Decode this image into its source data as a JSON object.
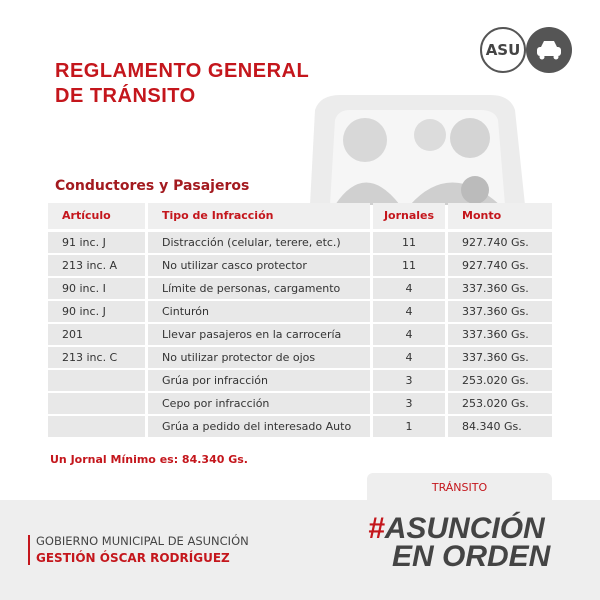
{
  "header": {
    "title_line1": "REGLAMENTO GENERAL",
    "title_line2": "DE TRÁNSITO",
    "badge": "ASU"
  },
  "section": {
    "title": "Conductores y Pasajeros"
  },
  "table": {
    "columns": [
      "Artículo",
      "Tipo de Infracción",
      "Jornales",
      "Monto"
    ],
    "rows": [
      [
        "91 inc. J",
        "Distracción (celular, terere, etc.)",
        "11",
        "927.740 Gs."
      ],
      [
        "213 inc. A",
        "No utilizar casco protector",
        "11",
        "927.740 Gs."
      ],
      [
        "90 inc. I",
        "Límite de personas, cargamento",
        "4",
        "337.360 Gs."
      ],
      [
        "90 inc. J",
        "Cinturón",
        "4",
        "337.360 Gs."
      ],
      [
        "201",
        "Llevar pasajeros en la carrocería",
        "4",
        "337.360 Gs."
      ],
      [
        "213 inc. C",
        "No utilizar protector de ojos",
        "4",
        "337.360 Gs."
      ],
      [
        null,
        "Grúa por infracción",
        "3",
        "253.020 Gs."
      ],
      [
        null,
        "Cepo por infracción",
        "3",
        "253.020 Gs."
      ],
      [
        null,
        "Grúa a pedido del interesado Auto",
        "1",
        "84.340 Gs."
      ]
    ]
  },
  "note": "Un Jornal Mínimo es: 84.340 Gs.",
  "tab": "TRÁNSITO",
  "footer": {
    "line1": "GOBIERNO MUNICIPAL DE ASUNCIÓN",
    "line2": "GESTIÓN ÓSCAR RODRÍGUEZ"
  },
  "logo": {
    "hash": "#",
    "line1": "ASUNCIÓN",
    "line2": "EN ORDEN"
  }
}
